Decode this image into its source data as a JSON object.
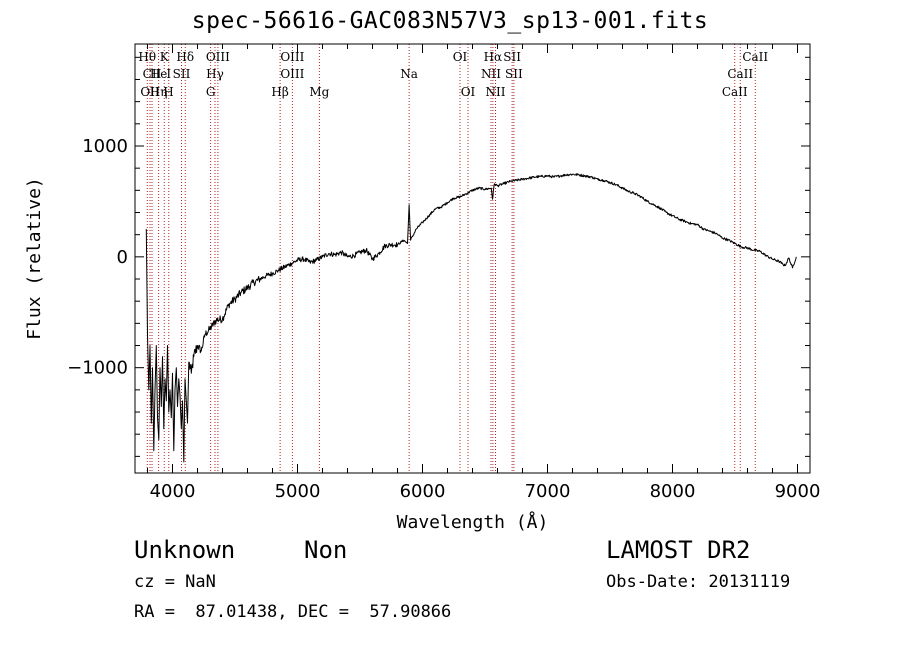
{
  "title": "spec-56616-GAC083N57V3_sp13-001.fits",
  "footer": {
    "class": "Unknown",
    "subclass": "Non",
    "survey": "LAMOST DR2",
    "cz": "cz = NaN",
    "obs_date": "Obs-Date: 20131119",
    "radec": "RA =  87.01438, DEC =  57.90866"
  },
  "chart_data": {
    "type": "line",
    "title": "spec-56616-GAC083N57V3_sp13-001.fits",
    "xlabel": "Wavelength (Å)",
    "ylabel": "Flux (relative)",
    "xlim": [
      3700,
      9100
    ],
    "ylim": [
      -1950,
      1920
    ],
    "xticks": [
      4000,
      5000,
      6000,
      7000,
      8000,
      9000
    ],
    "yticks": [
      -1000,
      0,
      1000
    ],
    "grid": false,
    "series": [
      {
        "x": [
          3790,
          3800,
          3810,
          3820,
          3830,
          3840,
          3850,
          3860,
          3870,
          3880,
          3890,
          3900,
          3910,
          3920,
          3930,
          3940,
          3950,
          3960,
          3970,
          3980,
          3990,
          4000,
          4010,
          4020,
          4030,
          4040,
          4050,
          4060,
          4070,
          4080,
          4090,
          4100,
          4110,
          4120,
          4130,
          4150,
          4170,
          4200,
          4230,
          4260,
          4300,
          4350,
          4400,
          4450,
          4500,
          4550,
          4600,
          4650,
          4700,
          4750,
          4800,
          4850,
          4900,
          4950,
          5000,
          5050,
          5100,
          5150,
          5200,
          5250,
          5300,
          5350,
          5400,
          5450,
          5500,
          5550,
          5600,
          5650,
          5700,
          5750,
          5800,
          5850,
          5880,
          5893,
          5905,
          5950,
          6000,
          6050,
          6100,
          6150,
          6200,
          6250,
          6300,
          6350,
          6400,
          6450,
          6500,
          6550,
          6560,
          6575,
          6600,
          6650,
          6700,
          6750,
          6800,
          6850,
          6900,
          6950,
          7000,
          7050,
          7100,
          7150,
          7200,
          7250,
          7300,
          7350,
          7400,
          7450,
          7500,
          7550,
          7600,
          7650,
          7700,
          7750,
          7800,
          7850,
          7900,
          7950,
          8000,
          8050,
          8100,
          8150,
          8200,
          8250,
          8300,
          8350,
          8400,
          8450,
          8500,
          8550,
          8600,
          8650,
          8700,
          8750,
          8800,
          8850,
          8900,
          8930,
          8960,
          8990
        ],
        "y": [
          250,
          -700,
          -1200,
          -800,
          -1500,
          -1000,
          -1750,
          -1200,
          -800,
          -1450,
          -1650,
          -1000,
          -1350,
          -900,
          -1550,
          -1100,
          -1300,
          -800,
          -1400,
          -1200,
          -1450,
          -1050,
          -1750,
          -1200,
          -1000,
          -1350,
          -1100,
          -1250,
          -1550,
          -1300,
          -1850,
          -1100,
          -1300,
          -1500,
          -950,
          -1050,
          -900,
          -800,
          -850,
          -700,
          -650,
          -570,
          -560,
          -430,
          -380,
          -320,
          -280,
          -230,
          -200,
          -170,
          -150,
          -120,
          -90,
          -60,
          -30,
          -20,
          -50,
          -30,
          0,
          30,
          20,
          40,
          0,
          10,
          40,
          60,
          -20,
          30,
          100,
          110,
          110,
          150,
          120,
          470,
          150,
          250,
          310,
          370,
          430,
          450,
          490,
          530,
          540,
          570,
          600,
          620,
          610,
          620,
          520,
          660,
          640,
          660,
          680,
          690,
          700,
          710,
          720,
          725,
          730,
          720,
          730,
          740,
          745,
          740,
          730,
          720,
          700,
          690,
          670,
          650,
          620,
          590,
          570,
          540,
          500,
          470,
          440,
          400,
          370,
          340,
          320,
          300,
          290,
          250,
          230,
          210,
          170,
          150,
          120,
          90,
          80,
          60,
          50,
          10,
          -20,
          -40,
          -80,
          -10,
          -100,
          0
        ]
      }
    ],
    "line_markers": [
      {
        "label": "Hθ",
        "x": 3798,
        "row": 0
      },
      {
        "label": "K",
        "x": 3934,
        "row": 0
      },
      {
        "label": "Hδ",
        "x": 4102,
        "row": 0
      },
      {
        "label": "OIII",
        "x": 4363,
        "row": 0
      },
      {
        "label": "OIII",
        "x": 4959,
        "row": 0
      },
      {
        "label": "OI",
        "x": 6300,
        "row": 0
      },
      {
        "label": "Hα",
        "x": 6563,
        "row": 0
      },
      {
        "label": "SII",
        "x": 6717,
        "row": 0
      },
      {
        "label": "CaII",
        "x": 8662,
        "row": 0
      },
      {
        "label": "CII",
        "x": 3836,
        "row": 1
      },
      {
        "label": "He",
        "x": 3889,
        "row": 1
      },
      {
        "label": "I",
        "x": 3970,
        "row": 1
      },
      {
        "label": "SII",
        "x": 4072,
        "row": 1
      },
      {
        "label": "Hγ",
        "x": 4340,
        "row": 1
      },
      {
        "label": "OIII",
        "x": 4959,
        "row": 1
      },
      {
        "label": "Na",
        "x": 5893,
        "row": 1
      },
      {
        "label": "NII",
        "x": 6548,
        "row": 1
      },
      {
        "label": "SII",
        "x": 6731,
        "row": 1
      },
      {
        "label": "CaII",
        "x": 8542,
        "row": 1
      },
      {
        "label": "OII",
        "x": 3820,
        "row": 2
      },
      {
        "label": "Hη",
        "x": 3889,
        "row": 2
      },
      {
        "label": "H",
        "x": 3968,
        "row": 2
      },
      {
        "label": "G",
        "x": 4305,
        "row": 2
      },
      {
        "label": "Hβ",
        "x": 4861,
        "row": 2
      },
      {
        "label": "Mg",
        "x": 5175,
        "row": 2
      },
      {
        "label": "OI",
        "x": 6364,
        "row": 2
      },
      {
        "label": "NII",
        "x": 6584,
        "row": 2
      },
      {
        "label": "CaII",
        "x": 8498,
        "row": 2
      }
    ]
  }
}
